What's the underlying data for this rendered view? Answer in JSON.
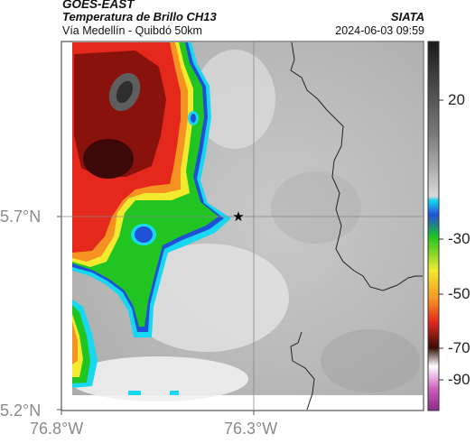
{
  "header": {
    "product": "GOES-EAST",
    "title": "Temperatura de Brillo CH13",
    "source": "SIATA",
    "subtitle": "Vía Medellín - Quibdó 50km",
    "timestamp": "2024-06-03 09:59"
  },
  "axes": {
    "y_ticks": [
      "5.7°N",
      "5.2°N"
    ],
    "x_ticks": [
      "76.8°W",
      "76.3°W"
    ]
  },
  "colorbar": {
    "ticks": [
      "20",
      "-30",
      "-50",
      "-70",
      "-90"
    ]
  },
  "colors": {
    "cold_core": "#3a3a3a",
    "red": "#e5281c",
    "orange": "#f59221",
    "yellow": "#f3ea2f",
    "green": "#21c521",
    "blue": "#2050d8",
    "cyan": "#18d8f0",
    "grey_warm": "#bfbfbf"
  },
  "marker": {
    "icon": "star-marker-icon"
  }
}
